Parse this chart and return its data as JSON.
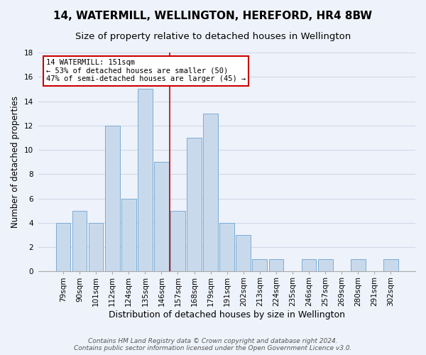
{
  "title": "14, WATERMILL, WELLINGTON, HEREFORD, HR4 8BW",
  "subtitle": "Size of property relative to detached houses in Wellington",
  "xlabel": "Distribution of detached houses by size in Wellington",
  "ylabel": "Number of detached properties",
  "categories": [
    "79sqm",
    "90sqm",
    "101sqm",
    "112sqm",
    "124sqm",
    "135sqm",
    "146sqm",
    "157sqm",
    "168sqm",
    "179sqm",
    "191sqm",
    "202sqm",
    "213sqm",
    "224sqm",
    "235sqm",
    "246sqm",
    "257sqm",
    "269sqm",
    "280sqm",
    "291sqm",
    "302sqm"
  ],
  "values": [
    4,
    5,
    4,
    12,
    6,
    15,
    9,
    5,
    11,
    13,
    4,
    3,
    1,
    1,
    0,
    1,
    1,
    0,
    1,
    0,
    1
  ],
  "bar_color": "#c9d9ec",
  "bar_edge_color": "#7aadd4",
  "grid_color": "#d0d8e8",
  "background_color": "#eef2fa",
  "vline_x_index": 6,
  "vline_color": "#cc0000",
  "annotation_text": "14 WATERMILL: 151sqm\n← 53% of detached houses are smaller (50)\n47% of semi-detached houses are larger (45) →",
  "annotation_box_color": "#ffffff",
  "annotation_box_edge_color": "#cc0000",
  "ylim": [
    0,
    18
  ],
  "yticks": [
    0,
    2,
    4,
    6,
    8,
    10,
    12,
    14,
    16,
    18
  ],
  "footer_line1": "Contains HM Land Registry data © Crown copyright and database right 2024.",
  "footer_line2": "Contains public sector information licensed under the Open Government Licence v3.0.",
  "title_fontsize": 11,
  "subtitle_fontsize": 9.5,
  "xlabel_fontsize": 9,
  "ylabel_fontsize": 8.5,
  "tick_fontsize": 7.5,
  "footer_fontsize": 6.5,
  "annotation_fontsize": 7.5
}
